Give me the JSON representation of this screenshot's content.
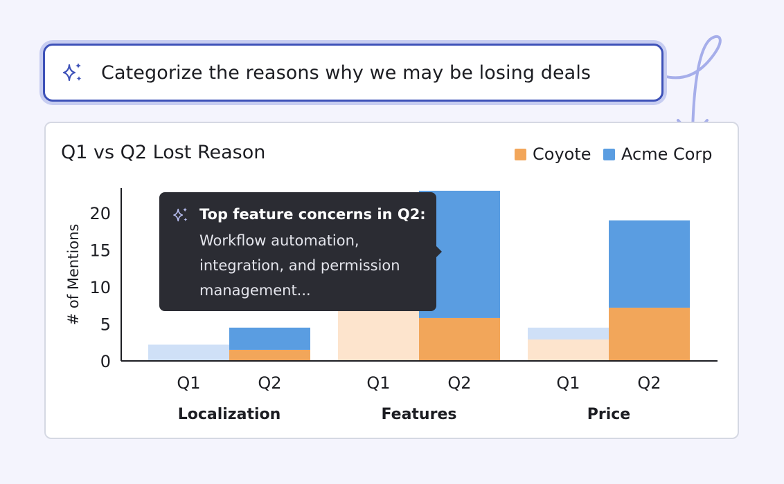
{
  "prompt": {
    "text": "Categorize the reasons why we may be losing deals",
    "icon": "sparkle-icon"
  },
  "card": {
    "title": "Q1 vs Q2 Lost Reason",
    "legend": [
      {
        "label": "Coyote",
        "color": "#f2a65a"
      },
      {
        "label": "Acme Corp",
        "color": "#5a9de1"
      }
    ]
  },
  "tooltip": {
    "icon": "sparkle-icon",
    "heading": "Top feature concerns in Q2:",
    "body": "Workflow automation, integration, and permission management..."
  },
  "chart_data": {
    "type": "bar",
    "stacked": true,
    "ylabel": "# of Mentions",
    "yticks": [
      0,
      5,
      10,
      15,
      20
    ],
    "ylim": [
      0,
      22.5
    ],
    "groups": [
      "Localization",
      "Features",
      "Price"
    ],
    "categories": [
      "Q1",
      "Q2"
    ],
    "series": [
      {
        "name": "Coyote",
        "color": "#f2a65a",
        "faded_color": "#fde4cd",
        "values": {
          "Localization": [
            0,
            1.5
          ],
          "Features": [
            7,
            5.8
          ],
          "Price": [
            2.9,
            7.2
          ]
        }
      },
      {
        "name": "Acme Corp",
        "color": "#5a9de1",
        "faded_color": "#cfe0f7",
        "values": {
          "Localization": [
            2.2,
            3
          ],
          "Features": [
            0,
            17.2
          ],
          "Price": [
            1.6,
            11.8
          ]
        }
      }
    ],
    "highlighted_category": "Q2",
    "grid": false,
    "legend_position": "top-right"
  }
}
